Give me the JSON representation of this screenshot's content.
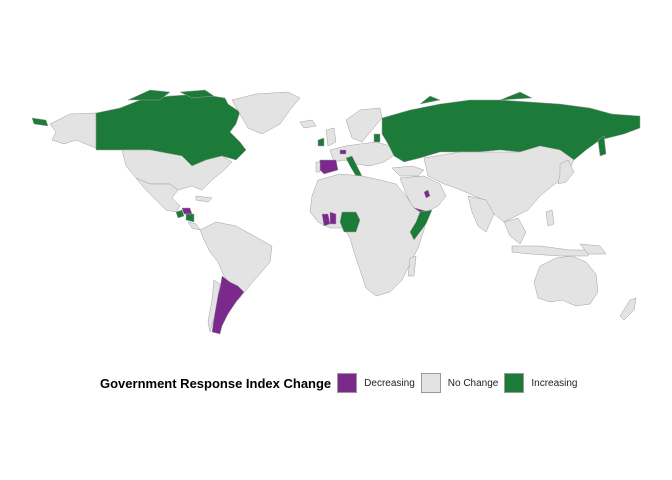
{
  "legend": {
    "title": "Government Response Index Change",
    "items": [
      {
        "label": "Decreasing",
        "color": "#7b2a8c"
      },
      {
        "label": "No Change",
        "color": "#e3e3e3"
      },
      {
        "label": "Increasing",
        "color": "#1d7b39"
      }
    ]
  },
  "colors": {
    "decreasing": "#7b2a8c",
    "no_change": "#e3e3e3",
    "increasing": "#1d7b39",
    "border": "#a0a0a0"
  },
  "regions": {
    "increasing": [
      "Canada",
      "Greenland-north",
      "Alaska-west-tip",
      "Ireland",
      "Italy",
      "Russia",
      "Nigeria",
      "Somalia",
      "Guatemala",
      "Nicaragua",
      "Baltics"
    ],
    "decreasing": [
      "Spain",
      "Argentina",
      "Yemen",
      "Honduras",
      "Liberia",
      "Cote-d-Ivoire",
      "Gulf-state",
      "Belgium"
    ],
    "no_change": [
      "United States",
      "Greenland",
      "Mexico",
      "South America",
      "Europe",
      "Africa",
      "Middle East",
      "Asia",
      "Australia",
      "Japan",
      "New Zealand"
    ]
  }
}
